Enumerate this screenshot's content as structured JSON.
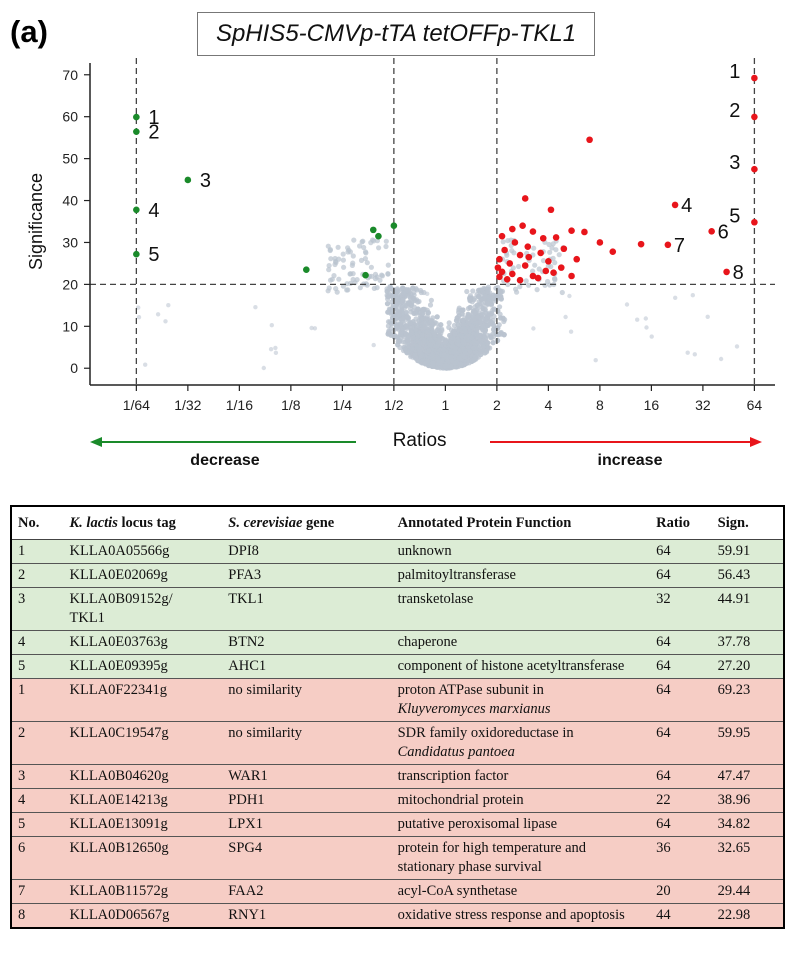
{
  "panel_label": "(a)",
  "figure_title": "SpHIS5-CMVp-tTA tetOFFp-TKL1",
  "chart_data": {
    "type": "scatter",
    "ylabel": "Significance",
    "xlabel": "Ratios",
    "x_scale": "log2",
    "xlim_log2": [
      -6.9,
      6.4
    ],
    "ylim": [
      -4,
      74
    ],
    "y_ticks": [
      0,
      10,
      20,
      30,
      40,
      50,
      60,
      70
    ],
    "x_ticks": [
      {
        "label": "1/64",
        "log2": -6
      },
      {
        "label": "1/32",
        "log2": -5
      },
      {
        "label": "1/16",
        "log2": -4
      },
      {
        "label": "1/8",
        "log2": -3
      },
      {
        "label": "1/4",
        "log2": -2
      },
      {
        "label": "1/2",
        "log2": -1
      },
      {
        "label": "1",
        "log2": 0
      },
      {
        "label": "2",
        "log2": 1
      },
      {
        "label": "4",
        "log2": 2
      },
      {
        "label": "8",
        "log2": 3
      },
      {
        "label": "16",
        "log2": 4
      },
      {
        "label": "32",
        "log2": 5
      },
      {
        "label": "64",
        "log2": 6
      }
    ],
    "threshold_lines": {
      "x_log2": [
        -6,
        -1,
        1,
        6
      ],
      "y": 20
    },
    "colors": {
      "decrease": "#1a8a2a",
      "increase": "#e8151b",
      "background": "#b9c3cf",
      "axis": "#222222"
    },
    "arrows": {
      "decrease_label": "decrease",
      "increase_label": "increase"
    },
    "decreased_points": [
      {
        "label": "1",
        "log2": -6,
        "y": 59.91
      },
      {
        "label": "2",
        "log2": -6,
        "y": 56.43
      },
      {
        "label": "3",
        "log2": -5,
        "y": 44.91
      },
      {
        "label": "4",
        "log2": -6,
        "y": 37.78
      },
      {
        "label": "5",
        "log2": -6,
        "y": 27.2
      },
      {
        "label": "",
        "log2": -2.7,
        "y": 23.5
      },
      {
        "label": "",
        "log2": -1.55,
        "y": 22.2
      },
      {
        "label": "",
        "log2": -1.4,
        "y": 33.0
      },
      {
        "label": "",
        "log2": -1.3,
        "y": 31.5
      },
      {
        "label": "",
        "log2": -1.0,
        "y": 34.0
      }
    ],
    "increased_points": [
      {
        "label": "1",
        "log2": 6,
        "y": 69.23
      },
      {
        "label": "2",
        "log2": 6,
        "y": 59.95
      },
      {
        "label": "3",
        "log2": 6,
        "y": 47.47
      },
      {
        "label": "4",
        "log2": 4.46,
        "y": 38.96
      },
      {
        "label": "5",
        "log2": 6,
        "y": 34.82
      },
      {
        "label": "6",
        "log2": 5.17,
        "y": 32.65
      },
      {
        "label": "7",
        "log2": 4.32,
        "y": 29.44
      },
      {
        "label": "8",
        "log2": 5.46,
        "y": 22.98
      },
      {
        "label": "",
        "log2": 2.8,
        "y": 54.5
      },
      {
        "label": "",
        "log2": 1.55,
        "y": 40.5
      },
      {
        "label": "",
        "log2": 2.05,
        "y": 37.8
      },
      {
        "label": "",
        "log2": 2.45,
        "y": 32.8
      },
      {
        "label": "",
        "log2": 2.7,
        "y": 32.5
      },
      {
        "label": "",
        "log2": 2.15,
        "y": 31.2
      },
      {
        "label": "",
        "log2": 3.0,
        "y": 30.0
      },
      {
        "label": "",
        "log2": 3.25,
        "y": 27.8
      },
      {
        "label": "",
        "log2": 3.8,
        "y": 29.6
      },
      {
        "label": "",
        "log2": 1.1,
        "y": 31.5
      },
      {
        "label": "",
        "log2": 1.3,
        "y": 33.2
      },
      {
        "label": "",
        "log2": 1.5,
        "y": 34.0
      },
      {
        "label": "",
        "log2": 1.7,
        "y": 32.6
      },
      {
        "label": "",
        "log2": 1.9,
        "y": 31.0
      },
      {
        "label": "",
        "log2": 1.35,
        "y": 30.0
      },
      {
        "label": "",
        "log2": 1.6,
        "y": 29.0
      },
      {
        "label": "",
        "log2": 1.15,
        "y": 28.2
      },
      {
        "label": "",
        "log2": 1.45,
        "y": 27.0
      },
      {
        "label": "",
        "log2": 1.85,
        "y": 27.5
      },
      {
        "label": "",
        "log2": 2.3,
        "y": 28.5
      },
      {
        "label": "",
        "log2": 2.55,
        "y": 26.0
      },
      {
        "label": "",
        "log2": 1.05,
        "y": 26.0
      },
      {
        "label": "",
        "log2": 1.25,
        "y": 25.0
      },
      {
        "label": "",
        "log2": 1.55,
        "y": 24.5
      },
      {
        "label": "",
        "log2": 2.0,
        "y": 25.5
      },
      {
        "label": "",
        "log2": 2.25,
        "y": 24.0
      },
      {
        "label": "",
        "log2": 1.1,
        "y": 23.0
      },
      {
        "label": "",
        "log2": 1.3,
        "y": 22.5
      },
      {
        "label": "",
        "log2": 1.7,
        "y": 22.0
      },
      {
        "label": "",
        "log2": 1.95,
        "y": 23.2
      },
      {
        "label": "",
        "log2": 1.05,
        "y": 21.8
      },
      {
        "label": "",
        "log2": 1.2,
        "y": 21.2
      },
      {
        "label": "",
        "log2": 1.45,
        "y": 21.0
      },
      {
        "label": "",
        "log2": 1.8,
        "y": 21.5
      },
      {
        "label": "",
        "log2": 2.45,
        "y": 22.0
      },
      {
        "label": "",
        "log2": 1.02,
        "y": 24.0
      },
      {
        "label": "",
        "log2": 1.62,
        "y": 26.5
      },
      {
        "label": "",
        "log2": 2.1,
        "y": 22.8
      }
    ]
  },
  "table": {
    "headers": {
      "no": "No.",
      "tag_italic": "K. lactis",
      "tag_rest": " locus tag",
      "gene_italic": "S. cerevisiae",
      "gene_rest": " gene",
      "func": "Annotated Protein Function",
      "ratio": "Ratio",
      "sign": "Sign."
    },
    "rows": [
      {
        "group": "green",
        "no": "1",
        "tag": "KLLA0A05566g",
        "gene": "DPI8",
        "func": "unknown",
        "func_italic": "",
        "ratio": "64",
        "sign": "59.91"
      },
      {
        "group": "green",
        "no": "2",
        "tag": "KLLA0E02069g",
        "gene": "PFA3",
        "func": "palmitoyltransferase",
        "func_italic": "",
        "ratio": "64",
        "sign": "56.43"
      },
      {
        "group": "green",
        "no": "3",
        "tag": "KLLA0B09152g/\nTKL1",
        "gene": "TKL1",
        "func": "transketolase",
        "func_italic": "",
        "ratio": "32",
        "sign": "44.91"
      },
      {
        "group": "green",
        "no": "4",
        "tag": "KLLA0E03763g",
        "gene": "BTN2",
        "func": "chaperone",
        "func_italic": "",
        "ratio": "64",
        "sign": "37.78"
      },
      {
        "group": "green",
        "no": "5",
        "tag": "KLLA0E09395g",
        "gene": "AHC1",
        "func": "component of histone acetyltransferase",
        "func_italic": "",
        "ratio": "64",
        "sign": "27.20"
      },
      {
        "group": "red",
        "no": "1",
        "tag": "KLLA0F22341g",
        "gene": "no similarity",
        "func": "proton ATPase subunit in",
        "func_italic": "Kluyveromyces marxianus",
        "ratio": "64",
        "sign": "69.23"
      },
      {
        "group": "red",
        "no": "2",
        "tag": "KLLA0C19547g",
        "gene": "no similarity",
        "func": "SDR family oxidoreductase in",
        "func_italic": "Candidatus pantoea",
        "ratio": "64",
        "sign": "59.95"
      },
      {
        "group": "red",
        "no": "3",
        "tag": "KLLA0B04620g",
        "gene": "WAR1",
        "func": "transcription factor",
        "func_italic": "",
        "ratio": "64",
        "sign": "47.47"
      },
      {
        "group": "red",
        "no": "4",
        "tag": "KLLA0E14213g",
        "gene": "PDH1",
        "func": "mitochondrial protein",
        "func_italic": "",
        "ratio": "22",
        "sign": "38.96"
      },
      {
        "group": "red",
        "no": "5",
        "tag": "KLLA0E13091g",
        "gene": "LPX1",
        "func": "putative peroxisomal lipase",
        "func_italic": "",
        "ratio": "64",
        "sign": "34.82"
      },
      {
        "group": "red",
        "no": "6",
        "tag": "KLLA0B12650g",
        "gene": "SPG4",
        "func": "protein for high temperature and stationary phase survival",
        "func_italic": "",
        "ratio": "36",
        "sign": "32.65"
      },
      {
        "group": "red",
        "no": "7",
        "tag": "KLLA0B11572g",
        "gene": "FAA2",
        "func": "acyl-CoA synthetase",
        "func_italic": "",
        "ratio": "20",
        "sign": "29.44"
      },
      {
        "group": "red",
        "no": "8",
        "tag": "KLLA0D06567g",
        "gene": "RNY1",
        "func": "oxidative stress response and apoptosis",
        "func_italic": "",
        "ratio": "44",
        "sign": "22.98"
      }
    ]
  }
}
